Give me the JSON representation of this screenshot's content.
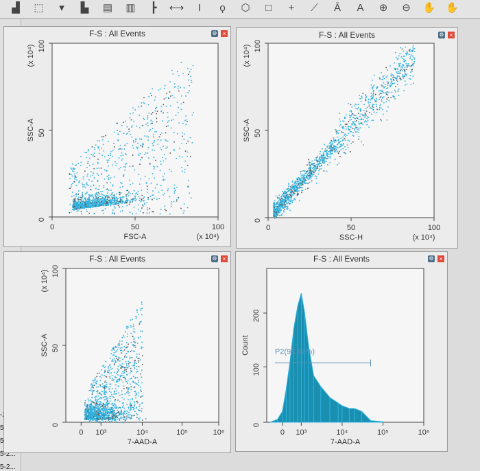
{
  "toolbar": {
    "icons": [
      "histogram-icon",
      "dot-plot-icon",
      "dropdown-arrow-icon",
      "overlay-histogram-icon",
      "contour-plot-icon",
      "statistics-icon",
      "hierarchy-icon",
      "interval-gate-icon",
      "text-cursor-icon",
      "freehand-gate-icon",
      "polygon-gate-icon",
      "rectangle-gate-icon",
      "quadrant-gate-icon",
      "snap-gate-icon",
      "annotation-icon",
      "text-tool-icon",
      "zoom-in-icon",
      "zoom-out-icon",
      "pan-hand-icon",
      "pan-hand-bar-icon"
    ]
  },
  "sidebar": {
    "items": [
      "-2...",
      "5-2...",
      "5-2...",
      "5-2...",
      "5-2..."
    ]
  },
  "colors": {
    "events": "#2fb3e0",
    "histogram": "#1a8fb0",
    "gate": "#5a8fb5",
    "close": "#e04a3a"
  },
  "chart_data": [
    {
      "type": "scatter",
      "title": "F-S : All Events",
      "xlabel": "FSC-A",
      "ylabel": "SSC-A",
      "x_multiplier": "(x 10⁴)",
      "y_multiplier": "(x 10⁴)",
      "xlim": [
        0,
        100
      ],
      "ylim": [
        0,
        100
      ],
      "xticks": [
        "0",
        "50",
        "100"
      ],
      "yticks": [
        "0",
        "50",
        "100"
      ],
      "grid": false
    },
    {
      "type": "scatter",
      "title": "F-S : All Events",
      "xlabel": "SSC-H",
      "ylabel": "SSC-A",
      "x_multiplier": "(x 10⁴)",
      "y_multiplier": "(x 10⁴)",
      "xlim": [
        0,
        100
      ],
      "ylim": [
        0,
        100
      ],
      "xticks": [
        "0",
        "50",
        "100"
      ],
      "yticks": [
        "0",
        "50",
        "100"
      ],
      "grid": false
    },
    {
      "type": "scatter",
      "title": "F-S : All Events",
      "xlabel": "7-AAD-A",
      "ylabel": "SSC-A",
      "y_multiplier": "(x 10⁴)",
      "x_scale": "biexponential",
      "xticks": [
        "0",
        "10³",
        "10⁴",
        "10⁵",
        "10⁶"
      ],
      "yticks": [
        "0",
        "50",
        "100"
      ],
      "ylim": [
        0,
        100
      ],
      "grid": false
    },
    {
      "type": "bar",
      "title": "F-S : All Events",
      "xlabel": "7-AAD-A",
      "ylabel": "Count",
      "x_scale": "biexponential",
      "xticks": [
        "0",
        "10³",
        "10⁴",
        "10⁵",
        "10⁶"
      ],
      "yticks": [
        "0",
        "100",
        "200"
      ],
      "ylim": [
        0,
        280
      ],
      "grid": false,
      "x": [
        -500,
        -200,
        0,
        200,
        400,
        600,
        800,
        1000,
        1200,
        1500,
        2000,
        3000,
        5000,
        8000,
        10000,
        15000,
        20000,
        30000,
        50000,
        100000
      ],
      "values": [
        0,
        5,
        20,
        60,
        110,
        170,
        210,
        235,
        200,
        140,
        85,
        65,
        45,
        35,
        30,
        25,
        25,
        20,
        3,
        1
      ],
      "gate": {
        "label": "P2(98.67%)",
        "range": [
          -300,
          50000
        ],
        "level": 108
      }
    }
  ]
}
